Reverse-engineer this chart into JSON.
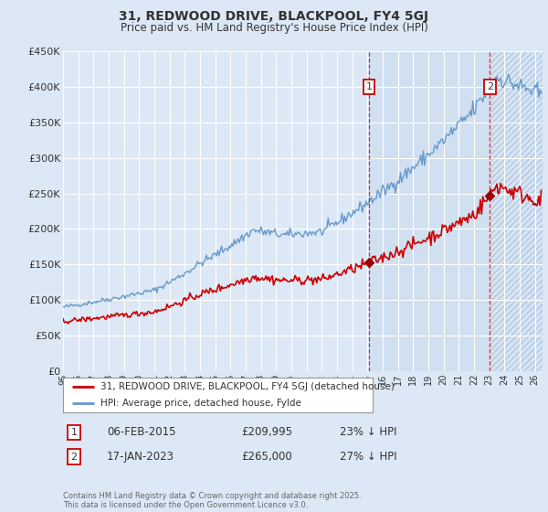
{
  "title": "31, REDWOOD DRIVE, BLACKPOOL, FY4 5GJ",
  "subtitle": "Price paid vs. HM Land Registry's House Price Index (HPI)",
  "ylim": [
    0,
    450000
  ],
  "yticks": [
    0,
    50000,
    100000,
    150000,
    200000,
    250000,
    300000,
    350000,
    400000,
    450000
  ],
  "ytick_labels": [
    "£0",
    "£50K",
    "£100K",
    "£150K",
    "£200K",
    "£250K",
    "£300K",
    "£350K",
    "£400K",
    "£450K"
  ],
  "background_color": "#dce8f5",
  "plot_bg_color": "#dce8f5",
  "grid_color": "#ffffff",
  "hpi_color": "#6699cc",
  "price_color": "#cc0000",
  "transaction1_date_x": 2015.09,
  "transaction1_price": 209995,
  "transaction1_label": "06-FEB-2015",
  "transaction1_amount": "£209,995",
  "transaction1_pct": "23% ↓ HPI",
  "transaction2_date_x": 2023.04,
  "transaction2_price": 265000,
  "transaction2_label": "17-JAN-2023",
  "transaction2_amount": "£265,000",
  "transaction2_pct": "27% ↓ HPI",
  "legend_line1": "31, REDWOOD DRIVE, BLACKPOOL, FY4 5GJ (detached house)",
  "legend_line2": "HPI: Average price, detached house, Fylde",
  "footer": "Contains HM Land Registry data © Crown copyright and database right 2025.\nThis data is licensed under the Open Government Licence v3.0.",
  "marker1_box": "1",
  "marker2_box": "2",
  "xmin": 1995,
  "xmax": 2026.5,
  "shade_color": "#d0e4f7",
  "hatch_color": "#c8d8e8"
}
